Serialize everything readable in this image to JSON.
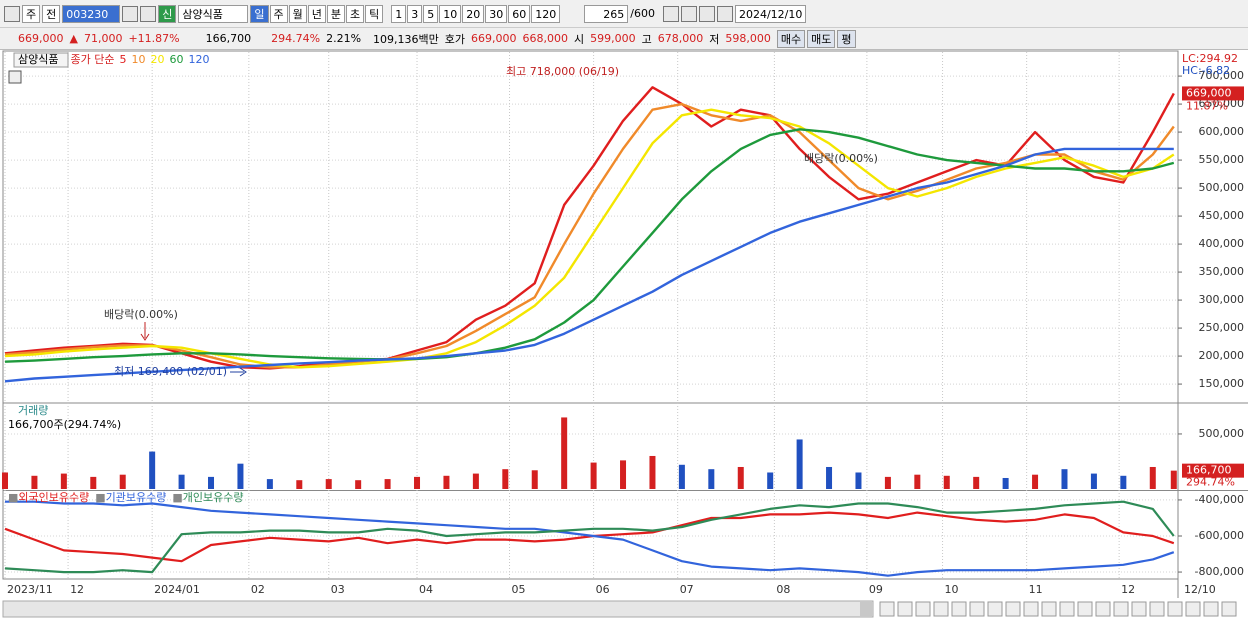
{
  "toolbar": {
    "market": "주",
    "scope": "전",
    "code": "003230",
    "badge": "신",
    "name": "삼양식품",
    "periods": [
      "일",
      "주",
      "월",
      "년",
      "분",
      "초",
      "틱"
    ],
    "intervals": [
      "1",
      "3",
      "5",
      "10",
      "20",
      "30",
      "60",
      "120"
    ],
    "count": "265",
    "max": "/600",
    "date": "2024/12/10"
  },
  "info_bar": {
    "price": "669,000",
    "arrow": "▲",
    "change": "71,000",
    "change_pct": "+11.87%",
    "volume": "166,700",
    "volume_pct": "294.74%",
    "turnover": "2.21%",
    "amount": "109,136백만",
    "quote_label": "호가",
    "ask": "669,000",
    "bid": "668,000",
    "open_label": "시",
    "open": "599,000",
    "high_label": "고",
    "high": "678,000",
    "low_label": "저",
    "low": "598,000",
    "buttons": [
      "매수",
      "매도",
      "평"
    ]
  },
  "chart_data": [
    {
      "type": "line",
      "name": "삼양식품",
      "legend_label": "종가 단순",
      "x": [
        0,
        7,
        14,
        21,
        28,
        35,
        42,
        49,
        56,
        63,
        70,
        77,
        84,
        91,
        98,
        105,
        112,
        119,
        126,
        133,
        140,
        147,
        154,
        161,
        168,
        175,
        182,
        189,
        196,
        203,
        210,
        217,
        224,
        231,
        238,
        245,
        252,
        259,
        266,
        273,
        278
      ],
      "xlim": [
        0,
        279
      ],
      "xticks": [
        {
          "value": 0,
          "label": "2023/11"
        },
        {
          "value": 15,
          "label": "12"
        },
        {
          "value": 35,
          "label": "2024/01"
        },
        {
          "value": 58,
          "label": "02"
        },
        {
          "value": 77,
          "label": "03"
        },
        {
          "value": 98,
          "label": "04"
        },
        {
          "value": 120,
          "label": "05"
        },
        {
          "value": 140,
          "label": "06"
        },
        {
          "value": 160,
          "label": "07"
        },
        {
          "value": 183,
          "label": "08"
        },
        {
          "value": 205,
          "label": "09"
        },
        {
          "value": 223,
          "label": "10"
        },
        {
          "value": 243,
          "label": "11"
        },
        {
          "value": 265,
          "label": "12"
        }
      ],
      "end_label": "12/10",
      "ylim": [
        118000,
        743000
      ],
      "yticks": [
        {
          "value": 150000,
          "label": "150,000"
        },
        {
          "value": 200000,
          "label": "200,000"
        },
        {
          "value": 250000,
          "label": "250,000"
        },
        {
          "value": 300000,
          "label": "300,000"
        },
        {
          "value": 350000,
          "label": "350,000"
        },
        {
          "value": 400000,
          "label": "400,000"
        },
        {
          "value": 450000,
          "label": "450,000"
        },
        {
          "value": 500000,
          "label": "500,000"
        },
        {
          "value": 550000,
          "label": "550,000"
        },
        {
          "value": 600000,
          "label": "600,000"
        },
        {
          "value": 650000,
          "label": "650,000"
        },
        {
          "value": 700000,
          "label": "700,000"
        }
      ],
      "series": [
        {
          "name": "5",
          "color": "#e01e1e",
          "values": [
            205000,
            210000,
            215000,
            218000,
            222000,
            220000,
            205000,
            190000,
            180000,
            178000,
            182000,
            188000,
            192000,
            195000,
            210000,
            225000,
            265000,
            290000,
            330000,
            470000,
            540000,
            620000,
            680000,
            650000,
            610000,
            640000,
            630000,
            570000,
            520000,
            480000,
            490000,
            510000,
            530000,
            550000,
            540000,
            600000,
            550000,
            520000,
            510000,
            600000,
            669000
          ]
        },
        {
          "name": "10",
          "color": "#f08a2a",
          "values": [
            203000,
            207000,
            212000,
            216000,
            219000,
            219000,
            210000,
            198000,
            185000,
            180000,
            180000,
            185000,
            190000,
            194000,
            205000,
            218000,
            245000,
            275000,
            305000,
            400000,
            490000,
            570000,
            640000,
            650000,
            630000,
            620000,
            630000,
            600000,
            550000,
            500000,
            480000,
            495000,
            515000,
            535000,
            545000,
            560000,
            560000,
            530000,
            515000,
            560000,
            610000
          ]
        },
        {
          "name": "20",
          "color": "#f4e600",
          "values": [
            200000,
            203000,
            208000,
            212000,
            215000,
            218000,
            215000,
            205000,
            195000,
            185000,
            180000,
            182000,
            186000,
            190000,
            195000,
            205000,
            225000,
            255000,
            290000,
            340000,
            420000,
            500000,
            580000,
            630000,
            640000,
            630000,
            625000,
            610000,
            580000,
            540000,
            500000,
            485000,
            500000,
            520000,
            535000,
            545000,
            555000,
            540000,
            520000,
            535000,
            560000
          ]
        },
        {
          "name": "60",
          "color": "#1e9a3c",
          "values": [
            190000,
            192000,
            195000,
            198000,
            200000,
            203000,
            205000,
            205000,
            203000,
            200000,
            198000,
            196000,
            195000,
            194000,
            195000,
            198000,
            205000,
            215000,
            230000,
            260000,
            300000,
            360000,
            420000,
            480000,
            530000,
            570000,
            595000,
            605000,
            600000,
            590000,
            575000,
            560000,
            550000,
            545000,
            540000,
            535000,
            535000,
            530000,
            530000,
            535000,
            545000
          ]
        },
        {
          "name": "120",
          "color": "#3264dc",
          "values": [
            155000,
            160000,
            163000,
            166000,
            169000,
            172000,
            175000,
            178000,
            181000,
            184000,
            187000,
            189000,
            192000,
            194000,
            196000,
            200000,
            205000,
            210000,
            220000,
            240000,
            265000,
            290000,
            315000,
            345000,
            370000,
            395000,
            420000,
            440000,
            455000,
            470000,
            485000,
            500000,
            510000,
            525000,
            540000,
            560000,
            570000,
            570000,
            570000,
            570000,
            570000
          ]
        }
      ],
      "annotations": [
        "최고 718,000 (06/19)",
        "최저 169,400 (02/01)",
        "배당락(0.00%)",
        "배당락(0.00%)"
      ],
      "lc": "LC:294.92",
      "hc": "HC:-6.82",
      "last_pct": "11.87%"
    },
    {
      "type": "bar",
      "title": "거래량",
      "subtitle": "166,700주(294.74%)",
      "values": [
        150000,
        120000,
        140000,
        110000,
        130000,
        340000,
        130000,
        110000,
        230000,
        90000,
        80000,
        90000,
        80000,
        90000,
        110000,
        120000,
        140000,
        180000,
        170000,
        650000,
        240000,
        260000,
        300000,
        220000,
        180000,
        200000,
        150000,
        450000,
        200000,
        150000,
        110000,
        130000,
        120000,
        110000,
        100000,
        130000,
        180000,
        140000,
        120000,
        200000,
        166700
      ],
      "ylim": [
        0,
        763000
      ],
      "yticks": [
        {
          "value": 500000,
          "label": "500,000"
        }
      ],
      "last_pct": "294.74%",
      "up_color": "#d42020",
      "down_color": "#2050c0"
    },
    {
      "type": "line",
      "ylim": [
        -833000,
        -356000
      ],
      "yticks": [
        {
          "value": -400000,
          "label": "-400,000"
        },
        {
          "value": -600000,
          "label": "-600,000"
        },
        {
          "value": -800000,
          "label": "-800,000"
        }
      ],
      "series": [
        {
          "name": "외국인보유수량",
          "color": "#e01e1e",
          "values": [
            -560000,
            -620000,
            -680000,
            -690000,
            -700000,
            -720000,
            -740000,
            -650000,
            -630000,
            -610000,
            -620000,
            -630000,
            -610000,
            -640000,
            -620000,
            -640000,
            -620000,
            -620000,
            -630000,
            -620000,
            -600000,
            -590000,
            -580000,
            -540000,
            -500000,
            -500000,
            -480000,
            -480000,
            -470000,
            -480000,
            -500000,
            -470000,
            -490000,
            -510000,
            -520000,
            -510000,
            -480000,
            -500000,
            -580000,
            -600000,
            -640000
          ]
        },
        {
          "name": "기관보유수량",
          "color": "#3264dc",
          "values": [
            -410000,
            -410000,
            -420000,
            -420000,
            -430000,
            -420000,
            -440000,
            -460000,
            -470000,
            -480000,
            -490000,
            -500000,
            -510000,
            -520000,
            -530000,
            -540000,
            -550000,
            -560000,
            -560000,
            -580000,
            -600000,
            -620000,
            -680000,
            -740000,
            -770000,
            -780000,
            -790000,
            -780000,
            -790000,
            -800000,
            -820000,
            -800000,
            -790000,
            -790000,
            -790000,
            -790000,
            -780000,
            -770000,
            -760000,
            -730000,
            -690000
          ]
        },
        {
          "name": "개인보유수량",
          "color": "#2e8b57",
          "values": [
            -780000,
            -790000,
            -800000,
            -800000,
            -790000,
            -800000,
            -590000,
            -580000,
            -580000,
            -570000,
            -570000,
            -580000,
            -580000,
            -560000,
            -570000,
            -600000,
            -590000,
            -580000,
            -580000,
            -570000,
            -560000,
            -560000,
            -570000,
            -550000,
            -510000,
            -480000,
            -450000,
            -430000,
            -440000,
            -420000,
            -420000,
            -440000,
            -470000,
            -470000,
            -460000,
            -450000,
            -430000,
            -420000,
            -410000,
            -450000,
            -600000
          ]
        }
      ]
    }
  ]
}
